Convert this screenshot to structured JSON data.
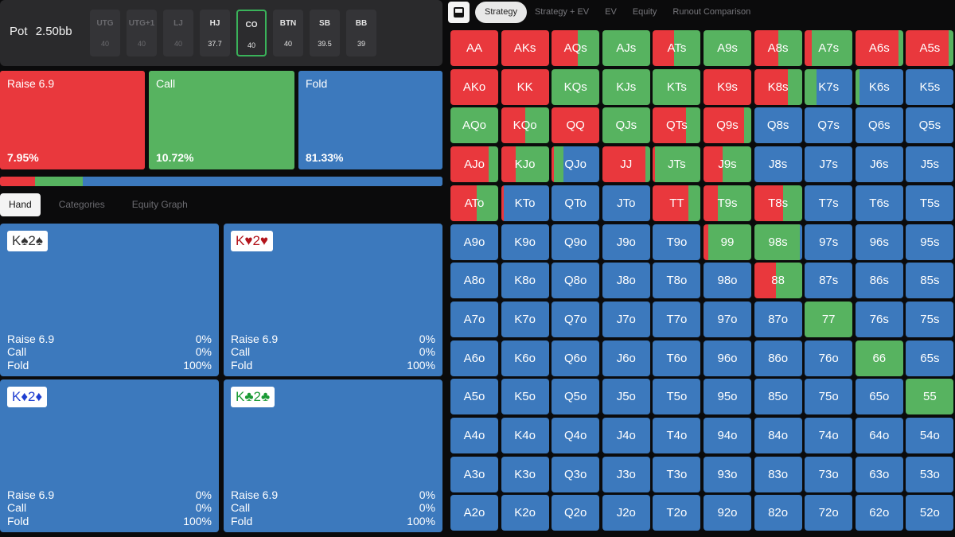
{
  "colors": {
    "raise": "#e9383d",
    "call": "#57b360",
    "fold": "#3c79bd"
  },
  "header": {
    "pot_label": "Pot",
    "pot_value": "2.50bb",
    "positions": [
      {
        "name": "UTG",
        "stack": "40",
        "state": "dim"
      },
      {
        "name": "UTG+1",
        "stack": "40",
        "state": "dim"
      },
      {
        "name": "LJ",
        "stack": "40",
        "state": "dim"
      },
      {
        "name": "HJ",
        "stack": "37.7",
        "state": "active"
      },
      {
        "name": "CO",
        "stack": "40",
        "state": "selected"
      },
      {
        "name": "BTN",
        "stack": "40",
        "state": "active"
      },
      {
        "name": "SB",
        "stack": "39.5",
        "state": "active"
      },
      {
        "name": "BB",
        "stack": "39",
        "state": "active"
      }
    ]
  },
  "actions": [
    {
      "label": "Raise 6.9",
      "pct": "7.95%"
    },
    {
      "label": "Call",
      "pct": "10.72%"
    },
    {
      "label": "Fold",
      "pct": "81.33%"
    }
  ],
  "freq": {
    "raise": 7.95,
    "call": 10.72,
    "fold": 81.33
  },
  "left_tabs": [
    "Hand",
    "Categories",
    "Equity Graph"
  ],
  "hands": [
    {
      "rank1": "K",
      "suit1": "♠",
      "rank2": "2",
      "suit2": "♠",
      "color": "#333333",
      "rows": [
        {
          "label": "Raise 6.9",
          "val": "0%"
        },
        {
          "label": "Call",
          "val": "0%"
        },
        {
          "label": "Fold",
          "val": "100%"
        }
      ]
    },
    {
      "rank1": "K",
      "suit1": "♥",
      "rank2": "2",
      "suit2": "♥",
      "color": "#b3141b",
      "rows": [
        {
          "label": "Raise 6.9",
          "val": "0%"
        },
        {
          "label": "Call",
          "val": "0%"
        },
        {
          "label": "Fold",
          "val": "100%"
        }
      ]
    },
    {
      "rank1": "K",
      "suit1": "♦",
      "rank2": "2",
      "suit2": "♦",
      "color": "#1f3fd1",
      "rows": [
        {
          "label": "Raise 6.9",
          "val": "0%"
        },
        {
          "label": "Call",
          "val": "0%"
        },
        {
          "label": "Fold",
          "val": "100%"
        }
      ]
    },
    {
      "rank1": "K",
      "suit1": "♣",
      "rank2": "2",
      "suit2": "♣",
      "color": "#1a9a35",
      "rows": [
        {
          "label": "Raise 6.9",
          "val": "0%"
        },
        {
          "label": "Call",
          "val": "0%"
        },
        {
          "label": "Fold",
          "val": "100%"
        }
      ]
    }
  ],
  "right_tabs": [
    "Strategy",
    "Strategy + EV",
    "EV",
    "Equity",
    "Runout Comparison"
  ],
  "matrix": [
    [
      {
        "h": "AA",
        "r": 100,
        "c": 0
      },
      {
        "h": "AKs",
        "r": 100,
        "c": 0
      },
      {
        "h": "AQs",
        "r": 55,
        "c": 45
      },
      {
        "h": "AJs",
        "r": 0,
        "c": 100
      },
      {
        "h": "ATs",
        "r": 45,
        "c": 55
      },
      {
        "h": "A9s",
        "r": 0,
        "c": 100
      },
      {
        "h": "A8s",
        "r": 50,
        "c": 50
      },
      {
        "h": "A7s",
        "r": 15,
        "c": 85
      },
      {
        "h": "A6s",
        "r": 90,
        "c": 10
      },
      {
        "h": "A5s",
        "r": 90,
        "c": 10
      }
    ],
    [
      {
        "h": "AKo",
        "r": 100,
        "c": 0
      },
      {
        "h": "KK",
        "r": 100,
        "c": 0
      },
      {
        "h": "KQs",
        "r": 0,
        "c": 100
      },
      {
        "h": "KJs",
        "r": 0,
        "c": 100
      },
      {
        "h": "KTs",
        "r": 0,
        "c": 100
      },
      {
        "h": "K9s",
        "r": 100,
        "c": 0
      },
      {
        "h": "K8s",
        "r": 70,
        "c": 30
      },
      {
        "h": "K7s",
        "r": 0,
        "c": 25
      },
      {
        "h": "K6s",
        "r": 0,
        "c": 8
      },
      {
        "h": "K5s",
        "r": 0,
        "c": 0
      }
    ],
    [
      {
        "h": "AQo",
        "r": 0,
        "c": 100
      },
      {
        "h": "KQo",
        "r": 50,
        "c": 50
      },
      {
        "h": "QQ",
        "r": 100,
        "c": 0
      },
      {
        "h": "QJs",
        "r": 0,
        "c": 100
      },
      {
        "h": "QTs",
        "r": 70,
        "c": 30
      },
      {
        "h": "Q9s",
        "r": 85,
        "c": 15
      },
      {
        "h": "Q8s",
        "r": 0,
        "c": 0
      },
      {
        "h": "Q7s",
        "r": 0,
        "c": 0
      },
      {
        "h": "Q6s",
        "r": 0,
        "c": 0
      },
      {
        "h": "Q5s",
        "r": 0,
        "c": 0
      }
    ],
    [
      {
        "h": "AJo",
        "r": 80,
        "c": 20
      },
      {
        "h": "KJo",
        "r": 30,
        "c": 70
      },
      {
        "h": "QJo",
        "r": 5,
        "c": 20
      },
      {
        "h": "JJ",
        "r": 90,
        "c": 10
      },
      {
        "h": "JTs",
        "r": 5,
        "c": 95
      },
      {
        "h": "J9s",
        "r": 40,
        "c": 60
      },
      {
        "h": "J8s",
        "r": 0,
        "c": 0
      },
      {
        "h": "J7s",
        "r": 0,
        "c": 0
      },
      {
        "h": "J6s",
        "r": 0,
        "c": 0
      },
      {
        "h": "J5s",
        "r": 0,
        "c": 0
      }
    ],
    [
      {
        "h": "ATo",
        "r": 55,
        "c": 45
      },
      {
        "h": "KTo",
        "r": 5,
        "c": 0
      },
      {
        "h": "QTo",
        "r": 0,
        "c": 0
      },
      {
        "h": "JTo",
        "r": 0,
        "c": 0
      },
      {
        "h": "TT",
        "r": 75,
        "c": 25
      },
      {
        "h": "T9s",
        "r": 30,
        "c": 70
      },
      {
        "h": "T8s",
        "r": 60,
        "c": 40
      },
      {
        "h": "T7s",
        "r": 0,
        "c": 0
      },
      {
        "h": "T6s",
        "r": 0,
        "c": 0
      },
      {
        "h": "T5s",
        "r": 0,
        "c": 0
      }
    ],
    [
      {
        "h": "A9o",
        "r": 0,
        "c": 0
      },
      {
        "h": "K9o",
        "r": 0,
        "c": 0
      },
      {
        "h": "Q9o",
        "r": 0,
        "c": 0
      },
      {
        "h": "J9o",
        "r": 0,
        "c": 0
      },
      {
        "h": "T9o",
        "r": 0,
        "c": 0
      },
      {
        "h": "99",
        "r": 10,
        "c": 90
      },
      {
        "h": "98s",
        "r": 0,
        "c": 95
      },
      {
        "h": "97s",
        "r": 0,
        "c": 0
      },
      {
        "h": "96s",
        "r": 0,
        "c": 0
      },
      {
        "h": "95s",
        "r": 0,
        "c": 0
      }
    ],
    [
      {
        "h": "A8o",
        "r": 0,
        "c": 0
      },
      {
        "h": "K8o",
        "r": 0,
        "c": 0
      },
      {
        "h": "Q8o",
        "r": 0,
        "c": 0
      },
      {
        "h": "J8o",
        "r": 0,
        "c": 0
      },
      {
        "h": "T8o",
        "r": 0,
        "c": 0
      },
      {
        "h": "98o",
        "r": 0,
        "c": 0
      },
      {
        "h": "88",
        "r": 45,
        "c": 55
      },
      {
        "h": "87s",
        "r": 0,
        "c": 0
      },
      {
        "h": "86s",
        "r": 0,
        "c": 0
      },
      {
        "h": "85s",
        "r": 0,
        "c": 0
      }
    ],
    [
      {
        "h": "A7o",
        "r": 0,
        "c": 0
      },
      {
        "h": "K7o",
        "r": 0,
        "c": 0
      },
      {
        "h": "Q7o",
        "r": 0,
        "c": 0
      },
      {
        "h": "J7o",
        "r": 0,
        "c": 0
      },
      {
        "h": "T7o",
        "r": 0,
        "c": 0
      },
      {
        "h": "97o",
        "r": 0,
        "c": 0
      },
      {
        "h": "87o",
        "r": 0,
        "c": 0
      },
      {
        "h": "77",
        "r": 0,
        "c": 100
      },
      {
        "h": "76s",
        "r": 0,
        "c": 0
      },
      {
        "h": "75s",
        "r": 0,
        "c": 0
      }
    ],
    [
      {
        "h": "A6o",
        "r": 0,
        "c": 0
      },
      {
        "h": "K6o",
        "r": 0,
        "c": 0
      },
      {
        "h": "Q6o",
        "r": 0,
        "c": 0
      },
      {
        "h": "J6o",
        "r": 0,
        "c": 0
      },
      {
        "h": "T6o",
        "r": 0,
        "c": 0
      },
      {
        "h": "96o",
        "r": 0,
        "c": 0
      },
      {
        "h": "86o",
        "r": 0,
        "c": 0
      },
      {
        "h": "76o",
        "r": 0,
        "c": 0
      },
      {
        "h": "66",
        "r": 0,
        "c": 100
      },
      {
        "h": "65s",
        "r": 0,
        "c": 0
      }
    ],
    [
      {
        "h": "A5o",
        "r": 0,
        "c": 0
      },
      {
        "h": "K5o",
        "r": 0,
        "c": 0
      },
      {
        "h": "Q5o",
        "r": 0,
        "c": 0
      },
      {
        "h": "J5o",
        "r": 0,
        "c": 0
      },
      {
        "h": "T5o",
        "r": 0,
        "c": 0
      },
      {
        "h": "95o",
        "r": 0,
        "c": 0
      },
      {
        "h": "85o",
        "r": 0,
        "c": 0
      },
      {
        "h": "75o",
        "r": 0,
        "c": 0
      },
      {
        "h": "65o",
        "r": 0,
        "c": 0
      },
      {
        "h": "55",
        "r": 0,
        "c": 100
      }
    ],
    [
      {
        "h": "A4o",
        "r": 0,
        "c": 0
      },
      {
        "h": "K4o",
        "r": 0,
        "c": 0
      },
      {
        "h": "Q4o",
        "r": 0,
        "c": 0
      },
      {
        "h": "J4o",
        "r": 0,
        "c": 0
      },
      {
        "h": "T4o",
        "r": 0,
        "c": 0
      },
      {
        "h": "94o",
        "r": 0,
        "c": 0
      },
      {
        "h": "84o",
        "r": 0,
        "c": 0
      },
      {
        "h": "74o",
        "r": 0,
        "c": 0
      },
      {
        "h": "64o",
        "r": 0,
        "c": 0
      },
      {
        "h": "54o",
        "r": 0,
        "c": 0
      }
    ],
    [
      {
        "h": "A3o",
        "r": 0,
        "c": 0
      },
      {
        "h": "K3o",
        "r": 0,
        "c": 0
      },
      {
        "h": "Q3o",
        "r": 0,
        "c": 0
      },
      {
        "h": "J3o",
        "r": 0,
        "c": 0
      },
      {
        "h": "T3o",
        "r": 0,
        "c": 0
      },
      {
        "h": "93o",
        "r": 0,
        "c": 0
      },
      {
        "h": "83o",
        "r": 0,
        "c": 0
      },
      {
        "h": "73o",
        "r": 0,
        "c": 0
      },
      {
        "h": "63o",
        "r": 0,
        "c": 0
      },
      {
        "h": "53o",
        "r": 0,
        "c": 0
      }
    ],
    [
      {
        "h": "A2o",
        "r": 0,
        "c": 0
      },
      {
        "h": "K2o",
        "r": 0,
        "c": 0
      },
      {
        "h": "Q2o",
        "r": 0,
        "c": 0
      },
      {
        "h": "J2o",
        "r": 0,
        "c": 0
      },
      {
        "h": "T2o",
        "r": 0,
        "c": 0
      },
      {
        "h": "92o",
        "r": 0,
        "c": 0
      },
      {
        "h": "82o",
        "r": 0,
        "c": 0
      },
      {
        "h": "72o",
        "r": 0,
        "c": 0
      },
      {
        "h": "62o",
        "r": 0,
        "c": 0
      },
      {
        "h": "52o",
        "r": 0,
        "c": 0
      }
    ]
  ]
}
